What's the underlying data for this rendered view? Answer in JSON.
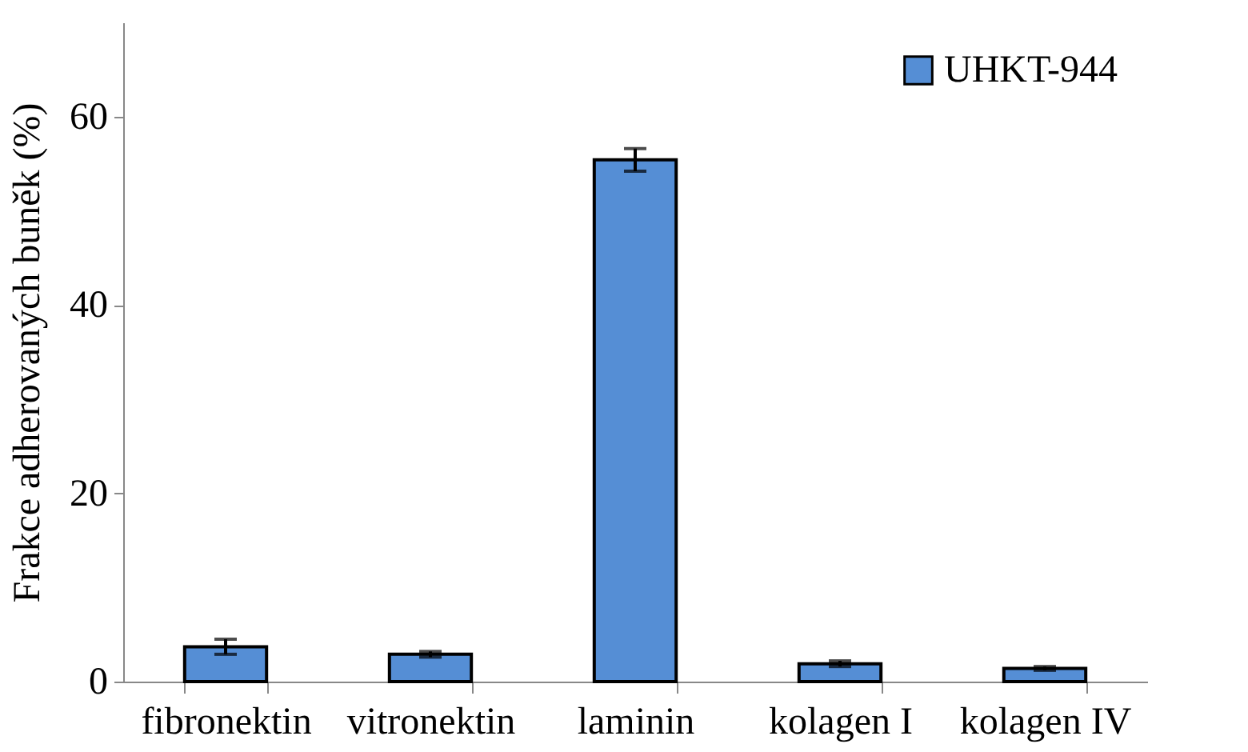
{
  "chart_data": {
    "type": "bar",
    "ylabel": "Frakce adherovaných buněk  (%)",
    "categories": [
      "fibronektin",
      "vitronektin",
      "laminin",
      "kolagen I",
      "kolagen IV"
    ],
    "series": [
      {
        "name": "UHKT-944",
        "color": "#558ed5",
        "values": [
          3.7,
          2.9,
          55.4,
          1.9,
          1.4
        ],
        "errors": [
          0.8,
          0.3,
          1.2,
          0.3,
          0.2
        ]
      }
    ],
    "ylim": [
      0,
      70
    ],
    "yticks": [
      0,
      20,
      40,
      60
    ],
    "grid": false,
    "legend": "top right"
  }
}
